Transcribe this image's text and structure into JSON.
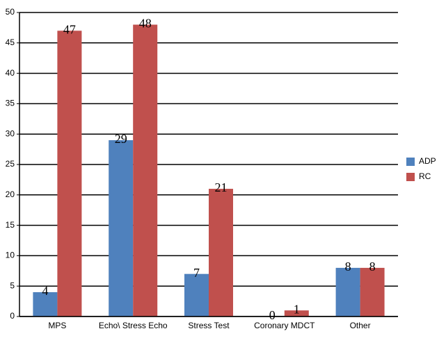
{
  "chart_data": {
    "type": "bar",
    "categories": [
      "MPS",
      "Echo\\ Stress Echo",
      "Stress Test",
      "Coronary MDCT",
      "Other"
    ],
    "series": [
      {
        "name": "ADP",
        "color": "#4f81bd",
        "values": [
          4,
          29,
          7,
          0,
          8
        ]
      },
      {
        "name": "RC",
        "color": "#c0504d",
        "values": [
          47,
          48,
          21,
          1,
          8
        ]
      }
    ],
    "ylim": [
      0,
      50
    ],
    "yticks": [
      0,
      5,
      10,
      15,
      20,
      25,
      30,
      35,
      40,
      45,
      50
    ],
    "grid": true,
    "legend": "right"
  }
}
